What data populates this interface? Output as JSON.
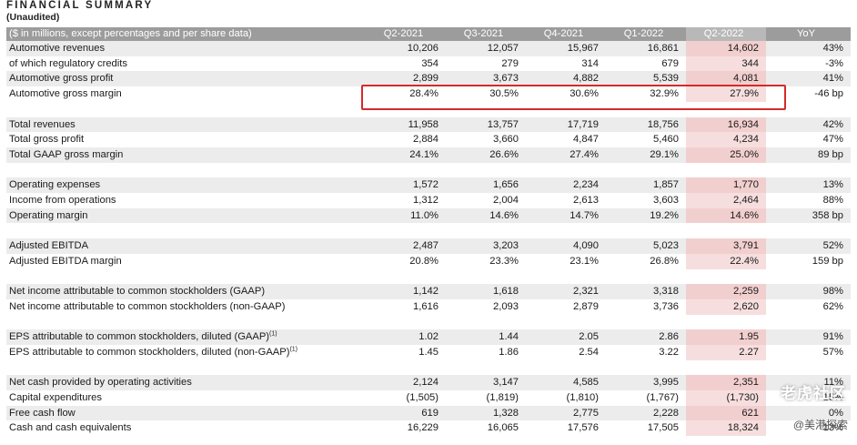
{
  "title": "FINANCIAL SUMMARY",
  "subtitle": "(Unaudited)",
  "header": {
    "label": "($ in millions, except percentages and per share data)",
    "columns": [
      "Q2-2021",
      "Q3-2021",
      "Q4-2021",
      "Q1-2022",
      "Q2-2022",
      "YoY"
    ]
  },
  "groups": [
    [
      {
        "label": "Automotive revenues",
        "values": [
          "10,206",
          "12,057",
          "15,967",
          "16,861",
          "14,602",
          "43%"
        ]
      },
      {
        "label": "of which regulatory credits",
        "values": [
          "354",
          "279",
          "314",
          "679",
          "344",
          "-3%"
        ],
        "indent": true
      },
      {
        "label": "Automotive gross profit",
        "values": [
          "2,899",
          "3,673",
          "4,882",
          "5,539",
          "4,081",
          "41%"
        ]
      },
      {
        "label": "Automotive gross margin",
        "values": [
          "28.4%",
          "30.5%",
          "30.6%",
          "32.9%",
          "27.9%",
          "-46 bp"
        ]
      }
    ],
    [
      {
        "label": "Total revenues",
        "values": [
          "11,958",
          "13,757",
          "17,719",
          "18,756",
          "16,934",
          "42%"
        ]
      },
      {
        "label": "Total gross profit",
        "values": [
          "2,884",
          "3,660",
          "4,847",
          "5,460",
          "4,234",
          "47%"
        ]
      },
      {
        "label": "Total GAAP gross margin",
        "values": [
          "24.1%",
          "26.6%",
          "27.4%",
          "29.1%",
          "25.0%",
          "89 bp"
        ]
      }
    ],
    [
      {
        "label": "Operating expenses",
        "values": [
          "1,572",
          "1,656",
          "2,234",
          "1,857",
          "1,770",
          "13%"
        ]
      },
      {
        "label": "Income from operations",
        "values": [
          "1,312",
          "2,004",
          "2,613",
          "3,603",
          "2,464",
          "88%"
        ]
      },
      {
        "label": "Operating margin",
        "values": [
          "11.0%",
          "14.6%",
          "14.7%",
          "19.2%",
          "14.6%",
          "358 bp"
        ]
      }
    ],
    [
      {
        "label": "Adjusted EBITDA",
        "values": [
          "2,487",
          "3,203",
          "4,090",
          "5,023",
          "3,791",
          "52%"
        ]
      },
      {
        "label": "Adjusted EBITDA margin",
        "values": [
          "20.8%",
          "23.3%",
          "23.1%",
          "26.8%",
          "22.4%",
          "159 bp"
        ]
      }
    ],
    [
      {
        "label": "Net income attributable to common stockholders (GAAP)",
        "values": [
          "1,142",
          "1,618",
          "2,321",
          "3,318",
          "2,259",
          "98%"
        ]
      },
      {
        "label": "Net income attributable to common stockholders (non-GAAP)",
        "values": [
          "1,616",
          "2,093",
          "2,879",
          "3,736",
          "2,620",
          "62%"
        ]
      }
    ],
    [
      {
        "label": "EPS attributable to common stockholders, diluted (GAAP)",
        "sup": "(1)",
        "values": [
          "1.02",
          "1.44",
          "2.05",
          "2.86",
          "1.95",
          "91%"
        ]
      },
      {
        "label": "EPS attributable to common stockholders, diluted (non-GAAP)",
        "sup": "(1)",
        "values": [
          "1.45",
          "1.86",
          "2.54",
          "3.22",
          "2.27",
          "57%"
        ]
      }
    ],
    [
      {
        "label": "Net cash provided by operating activities",
        "values": [
          "2,124",
          "3,147",
          "4,585",
          "3,995",
          "2,351",
          "11%"
        ]
      },
      {
        "label": "Capital expenditures",
        "values": [
          "(1,505)",
          "(1,819)",
          "(1,810)",
          "(1,767)",
          "(1,730)",
          "15%"
        ]
      },
      {
        "label": "Free cash flow",
        "values": [
          "619",
          "1,328",
          "2,775",
          "2,228",
          "621",
          "0%"
        ]
      },
      {
        "label": "Cash and cash equivalents",
        "values": [
          "16,229",
          "16,065",
          "17,576",
          "17,505",
          "18,324",
          "13%"
        ]
      }
    ]
  ],
  "watermark": "老虎社区",
  "watermark_sub": "@美港探索",
  "colors": {
    "header_bg": "#9c9c9c",
    "row_shade": "#ececec",
    "highlight": "#f2cfcf",
    "box": "#d42a2a"
  }
}
